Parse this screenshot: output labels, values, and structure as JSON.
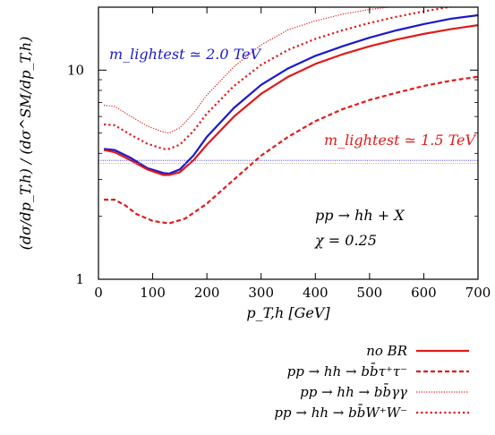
{
  "chart_data": {
    "type": "line",
    "xlabel": "p_T,h [GeV]",
    "ylabel": "(dσ/dp_T,h) / (dσ^SM/dp_T,h)",
    "xlim": [
      0,
      700
    ],
    "ylim": [
      1,
      20
    ],
    "yscale": "log",
    "x_ticks": [
      "0",
      "100",
      "200",
      "300",
      "400",
      "500",
      "600",
      "700"
    ],
    "y_ticks": [
      "1",
      "10"
    ],
    "grid": false,
    "legend_placement": "below",
    "annotations": [
      {
        "text": "m_lightest ≃ 2.0 TeV",
        "color": "#1a1acc"
      },
      {
        "text": "m_lightest ≃ 1.5 TeV",
        "color": "#e01a1a"
      },
      {
        "text": "pp → hh + X",
        "color": "#000000"
      },
      {
        "text": "χ = 0.25",
        "color": "#000000"
      }
    ],
    "series": [
      {
        "name": "",
        "color": "#1a1acc",
        "style": "solid",
        "x": [
          10,
          30,
          60,
          90,
          120,
          130,
          150,
          175,
          200,
          250,
          300,
          350,
          400,
          450,
          500,
          550,
          600,
          650,
          700
        ],
        "y": [
          4.2,
          4.15,
          3.8,
          3.4,
          3.22,
          3.2,
          3.35,
          3.9,
          4.8,
          6.6,
          8.5,
          10.2,
          11.7,
          13.0,
          14.3,
          15.5,
          16.6,
          17.6,
          18.3
        ]
      },
      {
        "name": "no BR",
        "color": "#e01a1a",
        "style": "solid",
        "x": [
          10,
          30,
          60,
          90,
          120,
          130,
          150,
          175,
          200,
          250,
          300,
          350,
          400,
          450,
          500,
          550,
          600,
          650,
          700
        ],
        "y": [
          4.15,
          4.05,
          3.7,
          3.35,
          3.15,
          3.15,
          3.25,
          3.7,
          4.4,
          6.0,
          7.7,
          9.3,
          10.7,
          11.9,
          13.0,
          14.0,
          14.9,
          15.7,
          16.4
        ]
      },
      {
        "name": "pp → hh → bb̄τ⁺τ⁻",
        "color": "#e01a1a",
        "style": "dashed",
        "x": [
          10,
          30,
          50,
          70,
          100,
          130,
          160,
          200,
          250,
          300,
          350,
          400,
          450,
          500,
          550,
          600,
          650,
          700
        ],
        "y": [
          2.4,
          2.4,
          2.25,
          2.05,
          1.9,
          1.85,
          1.95,
          2.3,
          3.0,
          3.9,
          4.8,
          5.7,
          6.5,
          7.2,
          7.8,
          8.4,
          8.9,
          9.3
        ]
      },
      {
        "name": "pp → hh → bb̄γγ",
        "color": "#e01a1a",
        "style": "dotted",
        "x": [
          10,
          30,
          60,
          90,
          120,
          130,
          150,
          175,
          200,
          250,
          300,
          350,
          400,
          450,
          500,
          550,
          600
        ],
        "y": [
          6.8,
          6.7,
          6.0,
          5.4,
          5.05,
          5.0,
          5.3,
          6.2,
          7.6,
          10.4,
          13.2,
          15.6,
          17.2,
          18.5,
          19.5,
          20.2,
          20.8
        ]
      },
      {
        "name": "pp → hh → bb̄W⁺W⁻",
        "color": "#e01a1a",
        "style": "dashdot",
        "x": [
          10,
          30,
          60,
          90,
          120,
          130,
          150,
          175,
          200,
          250,
          300,
          350,
          400,
          450,
          500,
          550,
          600,
          650
        ],
        "y": [
          5.5,
          5.45,
          4.9,
          4.45,
          4.2,
          4.2,
          4.4,
          5.1,
          6.2,
          8.4,
          10.6,
          12.5,
          14.1,
          15.5,
          16.8,
          18.0,
          19.1,
          20.1
        ]
      },
      {
        "name": "",
        "color": "#1a1acc",
        "style": "thin-dotted",
        "x": [
          0,
          700
        ],
        "y": [
          3.7,
          3.7
        ]
      },
      {
        "name": "",
        "color": "#e09a2a",
        "style": "thin-dotted",
        "x": [
          0,
          700
        ],
        "y": [
          3.58,
          3.58
        ]
      }
    ]
  }
}
